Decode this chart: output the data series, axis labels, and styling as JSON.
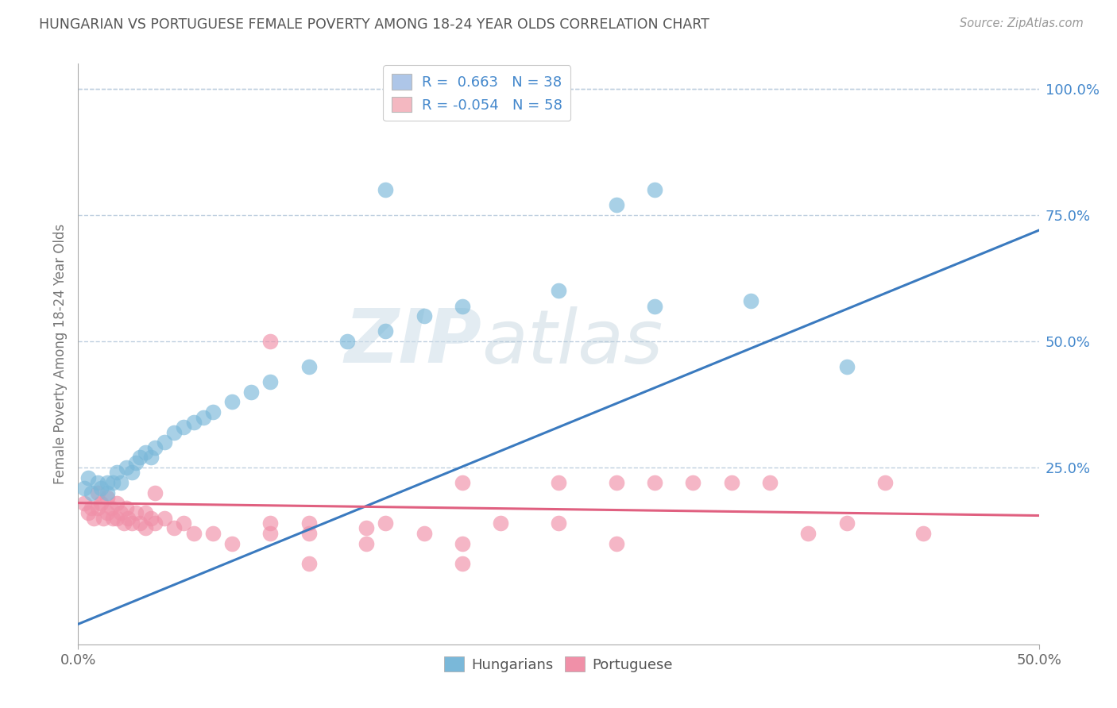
{
  "title": "HUNGARIAN VS PORTUGUESE FEMALE POVERTY AMONG 18-24 YEAR OLDS CORRELATION CHART",
  "source": "Source: ZipAtlas.com",
  "ylabel": "Female Poverty Among 18-24 Year Olds",
  "yticks_labels": [
    "100.0%",
    "75.0%",
    "50.0%",
    "25.0%"
  ],
  "ytick_values": [
    1.0,
    0.75,
    0.5,
    0.25
  ],
  "xrange": [
    0.0,
    0.5
  ],
  "yrange": [
    -0.1,
    1.05
  ],
  "legend_entries": [
    {
      "label": "R =  0.663   N = 38",
      "color": "#aec6e8"
    },
    {
      "label": "R = -0.054   N = 58",
      "color": "#f4b8c1"
    }
  ],
  "hungarian_color": "#7ab8d9",
  "portuguese_color": "#f090a8",
  "line_hungarian_color": "#3a7abf",
  "line_portuguese_color": "#e06080",
  "watermark_zip": "ZIP",
  "watermark_atlas": "atlas",
  "background_color": "#ffffff",
  "grid_color": "#c0d0e0",
  "title_color": "#555555",
  "axis_label_color": "#777777",
  "legend_text_color": "#4488cc",
  "right_tick_color": "#4488cc",
  "hungarian_line": [
    [
      0.0,
      -0.06
    ],
    [
      0.5,
      0.72
    ]
  ],
  "portuguese_line": [
    [
      0.0,
      0.18
    ],
    [
      0.5,
      0.155
    ]
  ],
  "hungarian_points": [
    [
      0.003,
      0.21
    ],
    [
      0.005,
      0.23
    ],
    [
      0.007,
      0.2
    ],
    [
      0.01,
      0.22
    ],
    [
      0.012,
      0.21
    ],
    [
      0.015,
      0.2
    ],
    [
      0.015,
      0.22
    ],
    [
      0.018,
      0.22
    ],
    [
      0.02,
      0.24
    ],
    [
      0.022,
      0.22
    ],
    [
      0.025,
      0.25
    ],
    [
      0.028,
      0.24
    ],
    [
      0.03,
      0.26
    ],
    [
      0.032,
      0.27
    ],
    [
      0.035,
      0.28
    ],
    [
      0.038,
      0.27
    ],
    [
      0.04,
      0.29
    ],
    [
      0.045,
      0.3
    ],
    [
      0.05,
      0.32
    ],
    [
      0.055,
      0.33
    ],
    [
      0.06,
      0.34
    ],
    [
      0.065,
      0.35
    ],
    [
      0.07,
      0.36
    ],
    [
      0.08,
      0.38
    ],
    [
      0.09,
      0.4
    ],
    [
      0.1,
      0.42
    ],
    [
      0.12,
      0.45
    ],
    [
      0.14,
      0.5
    ],
    [
      0.16,
      0.52
    ],
    [
      0.18,
      0.55
    ],
    [
      0.2,
      0.57
    ],
    [
      0.25,
      0.6
    ],
    [
      0.3,
      0.57
    ],
    [
      0.35,
      0.58
    ],
    [
      0.3,
      0.8
    ],
    [
      0.4,
      0.45
    ],
    [
      0.16,
      0.8
    ],
    [
      0.28,
      0.77
    ]
  ],
  "portuguese_points": [
    [
      0.003,
      0.18
    ],
    [
      0.005,
      0.16
    ],
    [
      0.007,
      0.17
    ],
    [
      0.008,
      0.15
    ],
    [
      0.01,
      0.2
    ],
    [
      0.01,
      0.17
    ],
    [
      0.012,
      0.18
    ],
    [
      0.013,
      0.15
    ],
    [
      0.015,
      0.19
    ],
    [
      0.015,
      0.16
    ],
    [
      0.017,
      0.17
    ],
    [
      0.018,
      0.15
    ],
    [
      0.02,
      0.18
    ],
    [
      0.02,
      0.15
    ],
    [
      0.022,
      0.16
    ],
    [
      0.024,
      0.14
    ],
    [
      0.025,
      0.17
    ],
    [
      0.026,
      0.15
    ],
    [
      0.028,
      0.14
    ],
    [
      0.03,
      0.16
    ],
    [
      0.032,
      0.14
    ],
    [
      0.035,
      0.16
    ],
    [
      0.035,
      0.13
    ],
    [
      0.038,
      0.15
    ],
    [
      0.04,
      0.2
    ],
    [
      0.04,
      0.14
    ],
    [
      0.045,
      0.15
    ],
    [
      0.05,
      0.13
    ],
    [
      0.055,
      0.14
    ],
    [
      0.06,
      0.12
    ],
    [
      0.07,
      0.12
    ],
    [
      0.08,
      0.1
    ],
    [
      0.1,
      0.5
    ],
    [
      0.1,
      0.14
    ],
    [
      0.12,
      0.14
    ],
    [
      0.12,
      0.12
    ],
    [
      0.15,
      0.13
    ],
    [
      0.16,
      0.14
    ],
    [
      0.18,
      0.12
    ],
    [
      0.2,
      0.22
    ],
    [
      0.22,
      0.14
    ],
    [
      0.25,
      0.22
    ],
    [
      0.25,
      0.14
    ],
    [
      0.28,
      0.22
    ],
    [
      0.3,
      0.22
    ],
    [
      0.32,
      0.22
    ],
    [
      0.34,
      0.22
    ],
    [
      0.36,
      0.22
    ],
    [
      0.38,
      0.12
    ],
    [
      0.4,
      0.14
    ],
    [
      0.42,
      0.22
    ],
    [
      0.44,
      0.12
    ],
    [
      0.1,
      0.12
    ],
    [
      0.15,
      0.1
    ],
    [
      0.2,
      0.1
    ],
    [
      0.28,
      0.1
    ],
    [
      0.12,
      0.06
    ],
    [
      0.2,
      0.06
    ]
  ]
}
